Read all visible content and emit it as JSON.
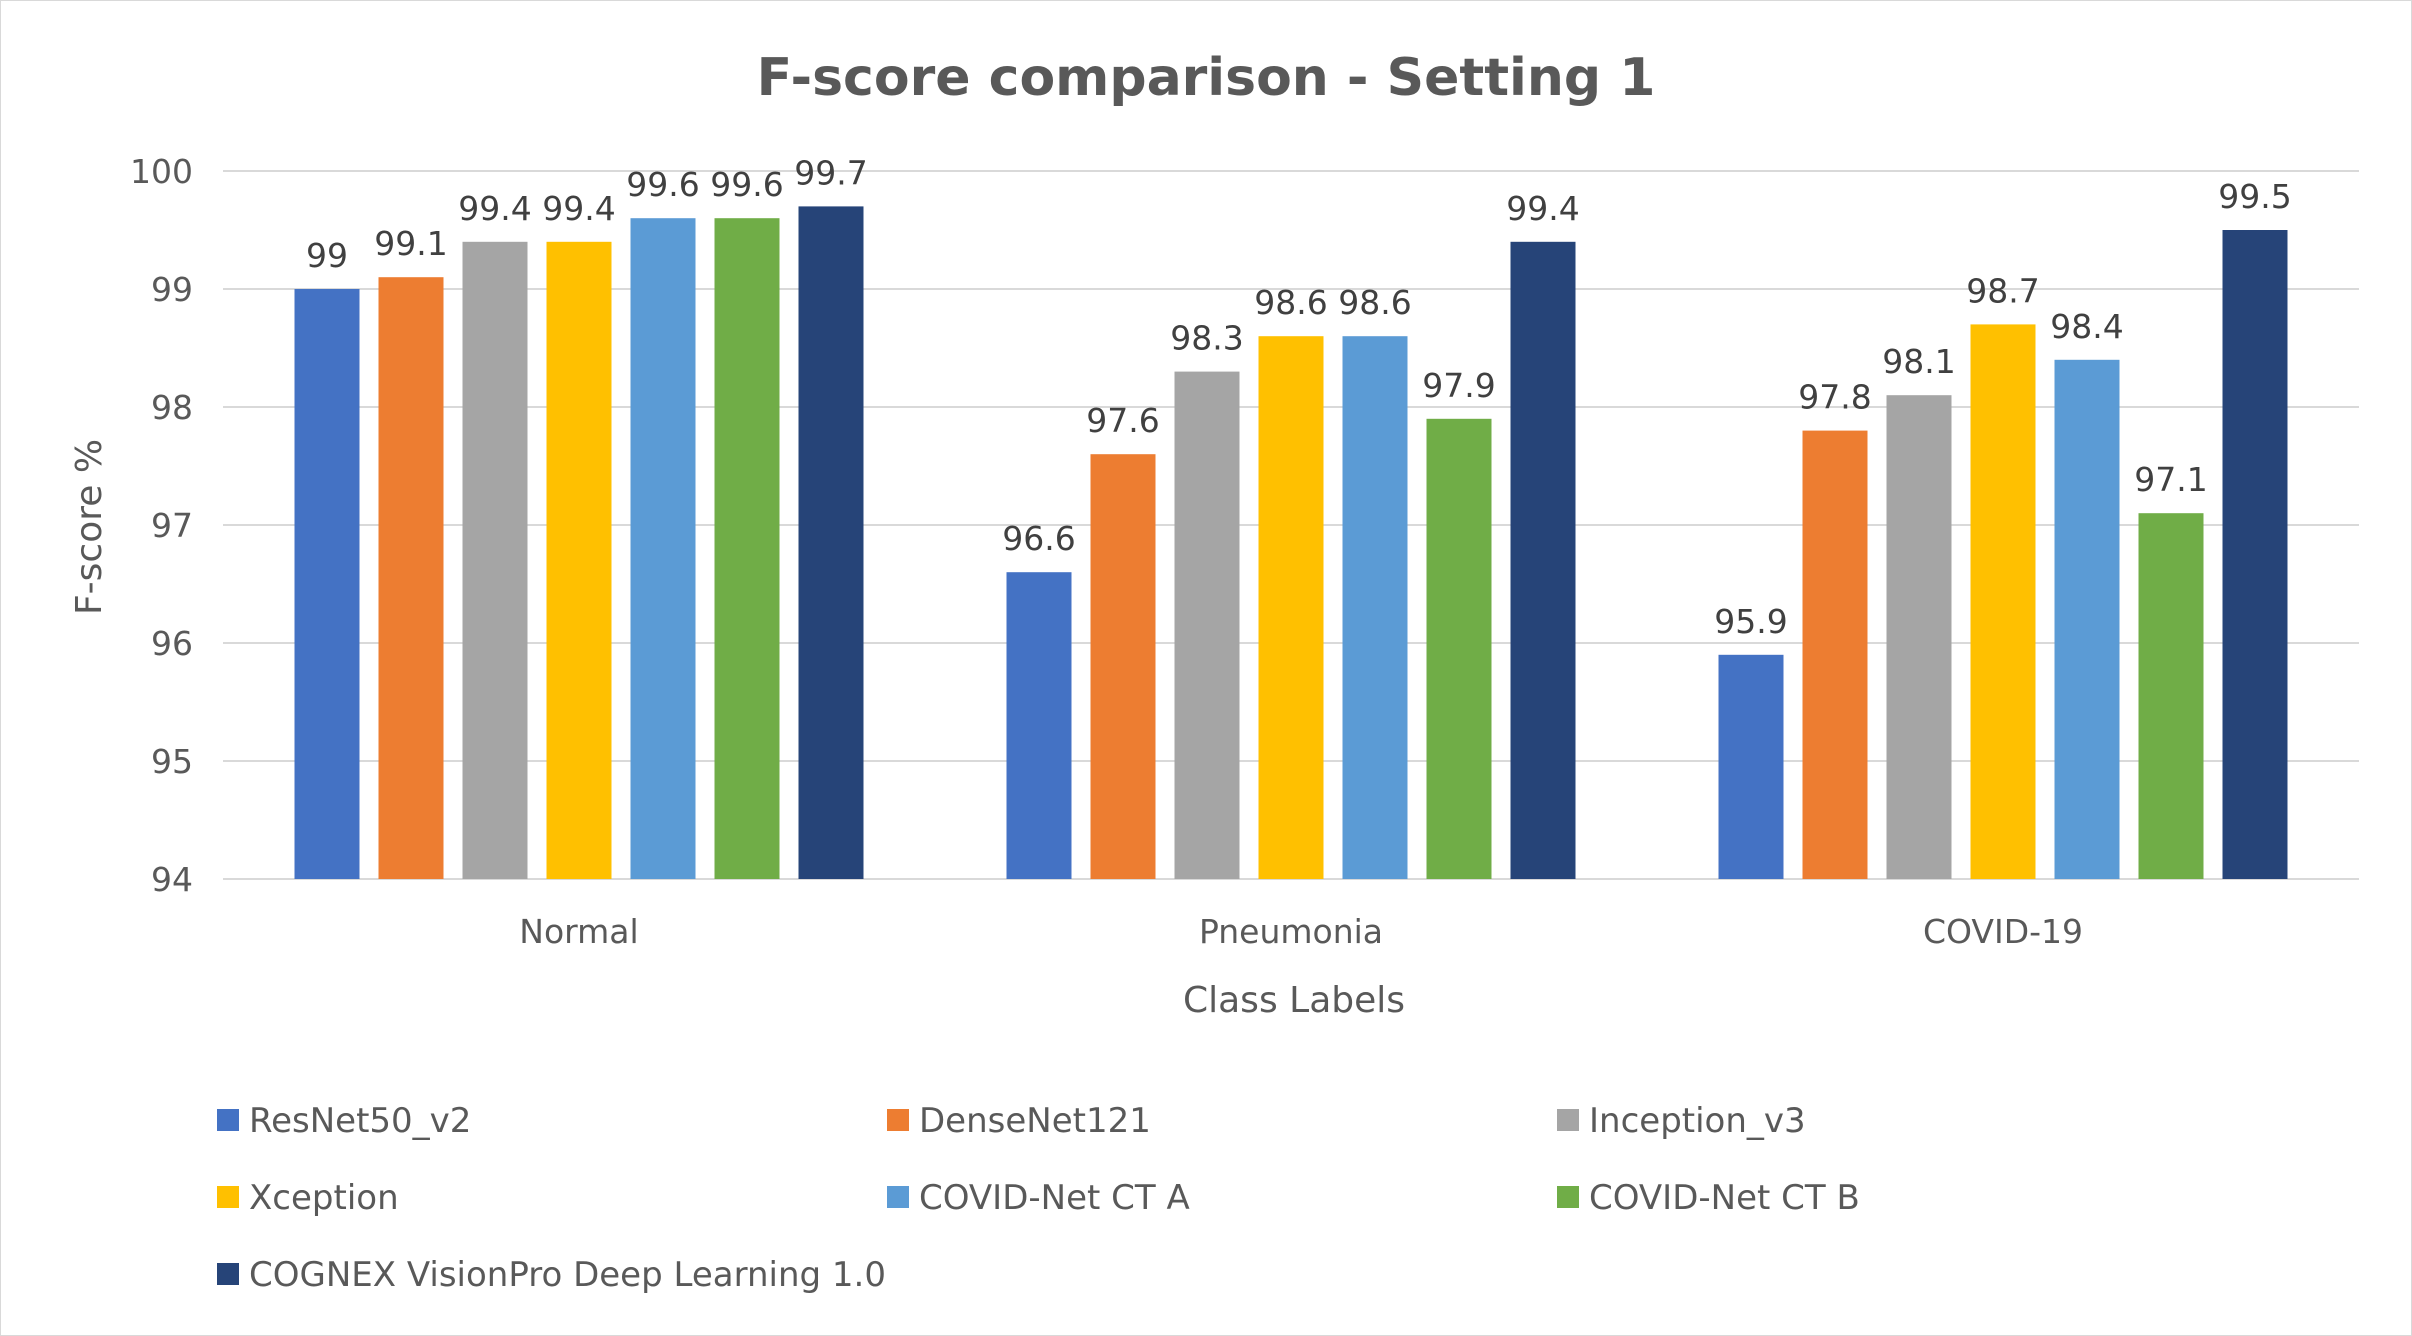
{
  "chart_data": {
    "type": "bar",
    "title": "F-score comparison - Setting 1",
    "xlabel": "Class Labels",
    "ylabel": "F-score %",
    "ylim": [
      94,
      100
    ],
    "yticks": [
      "94",
      "95",
      "96",
      "97",
      "98",
      "99",
      "100"
    ],
    "grid": true,
    "legend_position": "bottom",
    "categories": [
      "Normal",
      "Pneumonia",
      "COVID-19"
    ],
    "series": [
      {
        "name": "ResNet50_v2",
        "color": "#4472C4",
        "values": [
          99,
          96.6,
          95.9
        ],
        "labels": [
          "99",
          "96.6",
          "95.9"
        ]
      },
      {
        "name": "DenseNet121",
        "color": "#ED7D31",
        "values": [
          99.1,
          97.6,
          97.8
        ],
        "labels": [
          "99.1",
          "97.6",
          "97.8"
        ]
      },
      {
        "name": "Inception_v3",
        "color": "#A5A5A5",
        "values": [
          99.4,
          98.3,
          98.1
        ],
        "labels": [
          "99.4",
          "98.3",
          "98.1"
        ]
      },
      {
        "name": "Xception",
        "color": "#FFC000",
        "values": [
          99.4,
          98.6,
          98.7
        ],
        "labels": [
          "99.4",
          "98.6",
          "98.7"
        ]
      },
      {
        "name": "COVID-Net CT A",
        "color": "#5B9BD5",
        "values": [
          99.6,
          98.6,
          98.4
        ],
        "labels": [
          "99.6",
          "98.6",
          "98.4"
        ]
      },
      {
        "name": "COVID-Net CT B",
        "color": "#70AD47",
        "values": [
          99.6,
          97.9,
          97.1
        ],
        "labels": [
          "99.6",
          "97.9",
          "97.1"
        ]
      },
      {
        "name": "COGNEX VisionPro Deep Learning 1.0",
        "color": "#264478",
        "values": [
          99.7,
          99.4,
          99.5
        ],
        "labels": [
          "99.7",
          "99.4",
          "99.5"
        ]
      }
    ]
  }
}
